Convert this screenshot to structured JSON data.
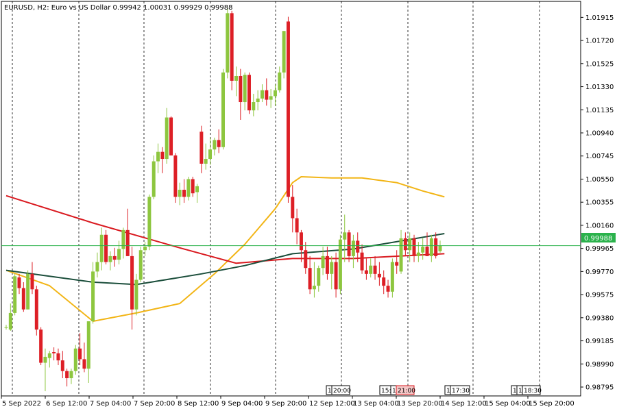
{
  "header": {
    "title": "EURUSD, H2:  Euro vs US Dollar  0.99942 1.00031 0.99929 0.99988"
  },
  "price_axis": {
    "current_price_label": "0.99988"
  },
  "time_axis": {
    "session_markers": [
      "1",
      "20:00",
      "15:",
      "1",
      "21:00",
      "1",
      "17:30",
      "1",
      "1",
      "18:30"
    ]
  },
  "colors": {
    "bull": "#8dc63f",
    "bear": "#dd1f26",
    "ma_slow": "#d9191f",
    "ma_fast": "#1b4e3b",
    "ma_medium": "#f2b516",
    "current_price_line": "#2bb24c",
    "grid": "#000000"
  },
  "chart_data": {
    "type": "candlestick",
    "title": "EURUSD, H2:  Euro vs US Dollar  0.99942 1.00031 0.99929 0.99988",
    "ylim": [
      0.9872,
      1.0205
    ],
    "y_ticks": [
      "1.01915",
      "1.01720",
      "1.01525",
      "1.01330",
      "1.01135",
      "1.00940",
      "1.00745",
      "1.00550",
      "1.00355",
      "1.00160",
      "0.99965",
      "0.99770",
      "0.99575",
      "0.99380",
      "0.99185",
      "0.98990",
      "0.98795"
    ],
    "x_ticks": [
      "5 Sep 2022",
      "6 Sep 12:00",
      "7 Sep 04:00",
      "7 Sep 20:00",
      "8 Sep 12:00",
      "9 Sep 04:00",
      "9 Sep 20:00",
      "12 Sep 12:00",
      "13 Sep 04:00",
      "13 Sep 20:00",
      "14 Sep 12:00",
      "15 Sep 04:00",
      "15 Sep 20:00"
    ],
    "candles": [
      {
        "o": 0.993,
        "h": 0.9932,
        "l": 0.9928,
        "c": 0.993
      },
      {
        "o": 0.9928,
        "h": 0.995,
        "l": 0.9927,
        "c": 0.9942
      },
      {
        "o": 0.9942,
        "h": 0.9975,
        "l": 0.994,
        "c": 0.9973
      },
      {
        "o": 0.9972,
        "h": 0.9975,
        "l": 0.9958,
        "c": 0.9963
      },
      {
        "o": 0.9963,
        "h": 0.9968,
        "l": 0.9943,
        "c": 0.9945
      },
      {
        "o": 0.9945,
        "h": 0.9978,
        "l": 0.9945,
        "c": 0.9975
      },
      {
        "o": 0.9975,
        "h": 0.9985,
        "l": 0.9958,
        "c": 0.9962
      },
      {
        "o": 0.9962,
        "h": 0.9965,
        "l": 0.9923,
        "c": 0.9928
      },
      {
        "o": 0.9928,
        "h": 0.993,
        "l": 0.9898,
        "c": 0.99
      },
      {
        "o": 0.99,
        "h": 0.9912,
        "l": 0.9876,
        "c": 0.9905
      },
      {
        "o": 0.9904,
        "h": 0.991,
        "l": 0.9896,
        "c": 0.9908
      },
      {
        "o": 0.9909,
        "h": 0.9913,
        "l": 0.9902,
        "c": 0.9908
      },
      {
        "o": 0.9908,
        "h": 0.9912,
        "l": 0.9898,
        "c": 0.9902
      },
      {
        "o": 0.9902,
        "h": 0.991,
        "l": 0.9887,
        "c": 0.9893
      },
      {
        "o": 0.9893,
        "h": 0.9895,
        "l": 0.988,
        "c": 0.9887
      },
      {
        "o": 0.9887,
        "h": 0.9895,
        "l": 0.9882,
        "c": 0.9893
      },
      {
        "o": 0.9893,
        "h": 0.9915,
        "l": 0.989,
        "c": 0.9912
      },
      {
        "o": 0.9912,
        "h": 0.9925,
        "l": 0.9898,
        "c": 0.9903
      },
      {
        "o": 0.9903,
        "h": 0.9917,
        "l": 0.9892,
        "c": 0.9895
      },
      {
        "o": 0.9895,
        "h": 0.9935,
        "l": 0.9883,
        "c": 0.9935
      },
      {
        "o": 0.9935,
        "h": 0.9985,
        "l": 0.9933,
        "c": 0.9977
      },
      {
        "o": 0.9977,
        "h": 0.9993,
        "l": 0.9972,
        "c": 0.9985
      },
      {
        "o": 0.9985,
        "h": 1.0014,
        "l": 0.9978,
        "c": 1.0008
      },
      {
        "o": 1.0008,
        "h": 1.0012,
        "l": 0.9983,
        "c": 0.9985
      },
      {
        "o": 0.9985,
        "h": 0.9994,
        "l": 0.9978,
        "c": 0.999
      },
      {
        "o": 0.999,
        "h": 0.9997,
        "l": 0.9981,
        "c": 0.9987
      },
      {
        "o": 0.9987,
        "h": 1.0003,
        "l": 0.9983,
        "c": 0.9996
      },
      {
        "o": 0.9996,
        "h": 1.0014,
        "l": 0.9988,
        "c": 1.0012
      },
      {
        "o": 1.0012,
        "h": 1.003,
        "l": 0.999,
        "c": 0.999
      },
      {
        "o": 0.999,
        "h": 0.9998,
        "l": 0.9928,
        "c": 0.9945
      },
      {
        "o": 0.9945,
        "h": 0.9975,
        "l": 0.994,
        "c": 0.997
      },
      {
        "o": 0.997,
        "h": 0.9998,
        "l": 0.9968,
        "c": 0.9995
      },
      {
        "o": 0.9995,
        "h": 1.0002,
        "l": 0.999,
        "c": 0.9998
      },
      {
        "o": 0.9998,
        "h": 1.0042,
        "l": 0.9995,
        "c": 1.004
      },
      {
        "o": 1.004,
        "h": 1.0075,
        "l": 1.0038,
        "c": 1.007
      },
      {
        "o": 1.007,
        "h": 1.0085,
        "l": 1.006,
        "c": 1.0078
      },
      {
        "o": 1.0078,
        "h": 1.0082,
        "l": 1.006,
        "c": 1.0072
      },
      {
        "o": 1.0072,
        "h": 1.0115,
        "l": 1.0068,
        "c": 1.0107
      },
      {
        "o": 1.0107,
        "h": 1.0108,
        "l": 1.0075,
        "c": 1.0075
      },
      {
        "o": 1.0075,
        "h": 1.0077,
        "l": 1.0035,
        "c": 1.004
      },
      {
        "o": 1.004,
        "h": 1.0052,
        "l": 1.0033,
        "c": 1.0046
      },
      {
        "o": 1.0046,
        "h": 1.0055,
        "l": 1.0035,
        "c": 1.004
      },
      {
        "o": 1.004,
        "h": 1.0057,
        "l": 1.0037,
        "c": 1.0055
      },
      {
        "o": 1.0055,
        "h": 1.0057,
        "l": 1.004,
        "c": 1.0043
      },
      {
        "o": 1.0044,
        "h": 1.0051,
        "l": 1.0035,
        "c": 1.0049
      },
      {
        "o": 1.0095,
        "h": 1.01,
        "l": 1.006,
        "c": 1.0068
      },
      {
        "o": 1.0068,
        "h": 1.0085,
        "l": 1.0063,
        "c": 1.0072
      },
      {
        "o": 1.0072,
        "h": 1.009,
        "l": 1.0067,
        "c": 1.008
      },
      {
        "o": 1.008,
        "h": 1.009,
        "l": 1.0075,
        "c": 1.0088
      },
      {
        "o": 1.0088,
        "h": 1.0097,
        "l": 1.0077,
        "c": 1.0082
      },
      {
        "o": 1.0082,
        "h": 1.0148,
        "l": 1.008,
        "c": 1.0145
      },
      {
        "o": 1.0145,
        "h": 1.02,
        "l": 1.014,
        "c": 1.0195
      },
      {
        "o": 1.0195,
        "h": 1.0197,
        "l": 1.013,
        "c": 1.0138
      },
      {
        "o": 1.0138,
        "h": 1.015,
        "l": 1.0125,
        "c": 1.0142
      },
      {
        "o": 1.0142,
        "h": 1.0148,
        "l": 1.0105,
        "c": 1.012
      },
      {
        "o": 1.012,
        "h": 1.0145,
        "l": 1.0113,
        "c": 1.0143
      },
      {
        "o": 1.0143,
        "h": 1.0145,
        "l": 1.011,
        "c": 1.0113
      },
      {
        "o": 1.0113,
        "h": 1.0127,
        "l": 1.0108,
        "c": 1.012
      },
      {
        "o": 1.012,
        "h": 1.013,
        "l": 1.0113,
        "c": 1.0123
      },
      {
        "o": 1.0123,
        "h": 1.0135,
        "l": 1.012,
        "c": 1.013
      },
      {
        "o": 1.013,
        "h": 1.014,
        "l": 1.0117,
        "c": 1.0122
      },
      {
        "o": 1.0122,
        "h": 1.0131,
        "l": 1.0115,
        "c": 1.0125
      },
      {
        "o": 1.0125,
        "h": 1.0135,
        "l": 1.0117,
        "c": 1.013
      },
      {
        "o": 1.013,
        "h": 1.015,
        "l": 1.0128,
        "c": 1.0145
      },
      {
        "o": 1.0145,
        "h": 1.018,
        "l": 1.014,
        "c": 1.018
      },
      {
        "o": 1.0188,
        "h": 1.0192,
        "l": 1.0035,
        "c": 1.004
      },
      {
        "o": 1.004,
        "h": 1.005,
        "l": 1.001,
        "c": 1.0022
      },
      {
        "o": 1.0022,
        "h": 1.003,
        "l": 1.0,
        "c": 1.001
      },
      {
        "o": 1.001,
        "h": 1.0012,
        "l": 0.9985,
        "c": 0.9995
      },
      {
        "o": 0.9995,
        "h": 1.0002,
        "l": 0.9975,
        "c": 0.998
      },
      {
        "o": 0.998,
        "h": 0.999,
        "l": 0.9958,
        "c": 0.9962
      },
      {
        "o": 0.9962,
        "h": 0.9985,
        "l": 0.9955,
        "c": 0.9965
      },
      {
        "o": 0.9965,
        "h": 0.9982,
        "l": 0.996,
        "c": 0.998
      },
      {
        "o": 0.998,
        "h": 0.9998,
        "l": 0.9974,
        "c": 0.999
      },
      {
        "o": 0.999,
        "h": 0.9998,
        "l": 0.997,
        "c": 0.9975
      },
      {
        "o": 0.9975,
        "h": 0.999,
        "l": 0.9962,
        "c": 0.9985
      },
      {
        "o": 0.9985,
        "h": 0.9993,
        "l": 0.9955,
        "c": 0.9962
      },
      {
        "o": 0.9962,
        "h": 1.0008,
        "l": 0.9958,
        "c": 1.0004
      },
      {
        "o": 1.0004,
        "h": 1.0025,
        "l": 0.9985,
        "c": 1.001
      },
      {
        "o": 1.001,
        "h": 1.0012,
        "l": 0.9985,
        "c": 0.999
      },
      {
        "o": 0.999,
        "h": 1.0008,
        "l": 0.998,
        "c": 1.0003
      },
      {
        "o": 1.0003,
        "h": 1.001,
        "l": 0.9985,
        "c": 0.9993
      },
      {
        "o": 0.9993,
        "h": 1.0,
        "l": 0.9975,
        "c": 0.9978
      },
      {
        "o": 0.9978,
        "h": 0.9988,
        "l": 0.997,
        "c": 0.9975
      },
      {
        "o": 0.9975,
        "h": 0.9988,
        "l": 0.9972,
        "c": 0.9982
      },
      {
        "o": 0.9982,
        "h": 0.999,
        "l": 0.997,
        "c": 0.9975
      },
      {
        "o": 0.9975,
        "h": 0.9985,
        "l": 0.9965,
        "c": 0.9972
      },
      {
        "o": 0.9972,
        "h": 0.9978,
        "l": 0.9958,
        "c": 0.9965
      },
      {
        "o": 0.9965,
        "h": 0.997,
        "l": 0.9955,
        "c": 0.996
      },
      {
        "o": 0.996,
        "h": 0.9988,
        "l": 0.9955,
        "c": 0.9985
      },
      {
        "o": 0.9985,
        "h": 0.9995,
        "l": 0.9975,
        "c": 0.9982
      },
      {
        "o": 0.9977,
        "h": 1.0012,
        "l": 0.9975,
        "c": 1.0005
      },
      {
        "o": 1.0005,
        "h": 1.001,
        "l": 0.999,
        "c": 0.9995
      },
      {
        "o": 0.9995,
        "h": 1.001,
        "l": 0.9985,
        "c": 1.0005
      },
      {
        "o": 1.0005,
        "h": 1.0008,
        "l": 0.9985,
        "c": 0.999
      },
      {
        "o": 0.999,
        "h": 1.0002,
        "l": 0.9985,
        "c": 0.9993
      },
      {
        "o": 0.9993,
        "h": 1.0005,
        "l": 0.9987,
        "c": 0.9998
      },
      {
        "o": 0.9998,
        "h": 1.001,
        "l": 0.999,
        "c": 0.999
      },
      {
        "o": 0.999,
        "h": 1.0008,
        "l": 0.9985,
        "c": 1.0005
      },
      {
        "o": 1.0005,
        "h": 1.001,
        "l": 0.9988,
        "c": 0.999
      },
      {
        "o": 0.99942,
        "h": 1.00031,
        "l": 0.99929,
        "c": 0.99988
      }
    ],
    "ma_slow": [
      [
        0,
        1.0041
      ],
      [
        20,
        1.0018
      ],
      [
        40,
        0.9997
      ],
      [
        53,
        0.9984
      ],
      [
        66,
        0.9988
      ],
      [
        80,
        0.9988
      ],
      [
        101,
        0.9992
      ]
    ],
    "ma_fast": [
      [
        0,
        0.9978
      ],
      [
        20,
        0.9968
      ],
      [
        30,
        0.9966
      ],
      [
        45,
        0.9975
      ],
      [
        55,
        0.9982
      ],
      [
        66,
        0.9992
      ],
      [
        80,
        0.9996
      ],
      [
        101,
        1.0009
      ]
    ],
    "ma_medium": [
      [
        0,
        0.9978
      ],
      [
        10,
        0.9965
      ],
      [
        20,
        0.9935
      ],
      [
        30,
        0.9942
      ],
      [
        40,
        0.995
      ],
      [
        48,
        0.9975
      ],
      [
        55,
        1.0
      ],
      [
        62,
        1.003
      ],
      [
        66,
        1.0052
      ],
      [
        68,
        1.0057
      ],
      [
        75,
        1.0056
      ],
      [
        82,
        1.0056
      ],
      [
        90,
        1.0052
      ],
      [
        96,
        1.0045
      ],
      [
        101,
        1.004
      ]
    ],
    "current_price": 0.99988
  }
}
